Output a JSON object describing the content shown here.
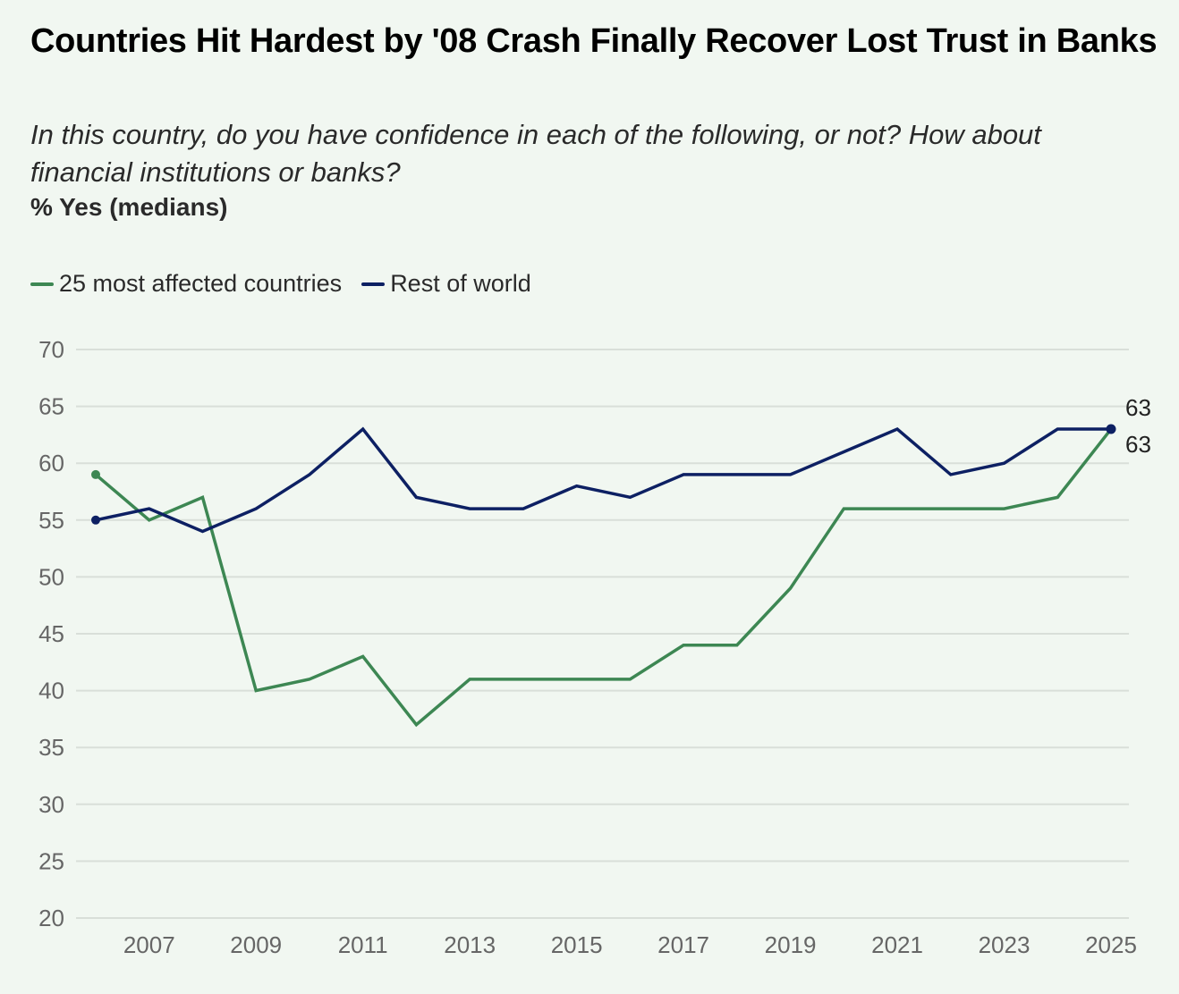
{
  "header": {
    "title": "Countries Hit Hardest by '08 Crash Finally Recover Lost Trust in Banks",
    "subtitle": "In this country, do you have confidence in each of the following, or not? How about financial institutions or banks?",
    "units": "% Yes (medians)"
  },
  "legend": [
    {
      "label": "25 most affected countries",
      "color": "#3d8753"
    },
    {
      "label": "Rest of world",
      "color": "#0d2063"
    }
  ],
  "chart_data": {
    "type": "line",
    "title": "Countries Hit Hardest by '08 Crash Finally Recover Lost Trust in Banks",
    "subtitle": "In this country, do you have confidence in each of the following, or not? How about financial institutions or banks?",
    "xlabel": "",
    "ylabel": "% Yes (medians)",
    "x": [
      2006,
      2007,
      2008,
      2009,
      2010,
      2011,
      2012,
      2013,
      2014,
      2015,
      2016,
      2017,
      2018,
      2019,
      2020,
      2021,
      2022,
      2023,
      2024,
      2025
    ],
    "xlim": [
      2006,
      2025
    ],
    "ylim": [
      20,
      70
    ],
    "yticks": [
      20,
      25,
      30,
      35,
      40,
      45,
      50,
      55,
      60,
      65,
      70
    ],
    "xticks": [
      2007,
      2009,
      2011,
      2013,
      2015,
      2017,
      2019,
      2021,
      2023,
      2025
    ],
    "grid": true,
    "legend_position": "top-left",
    "series": [
      {
        "name": "25 most affected countries",
        "color": "#3d8753",
        "values": [
          59,
          55,
          57,
          40,
          41,
          43,
          37,
          41,
          41,
          41,
          41,
          44,
          44,
          49,
          56,
          56,
          56,
          56,
          57,
          63
        ],
        "end_label": "63"
      },
      {
        "name": "Rest of world",
        "color": "#0d2063",
        "values": [
          55,
          56,
          54,
          56,
          59,
          63,
          57,
          56,
          56,
          58,
          57,
          59,
          59,
          59,
          61,
          63,
          59,
          60,
          63,
          63
        ],
        "end_label": "63"
      }
    ],
    "annotations": [
      "63",
      "63"
    ]
  }
}
